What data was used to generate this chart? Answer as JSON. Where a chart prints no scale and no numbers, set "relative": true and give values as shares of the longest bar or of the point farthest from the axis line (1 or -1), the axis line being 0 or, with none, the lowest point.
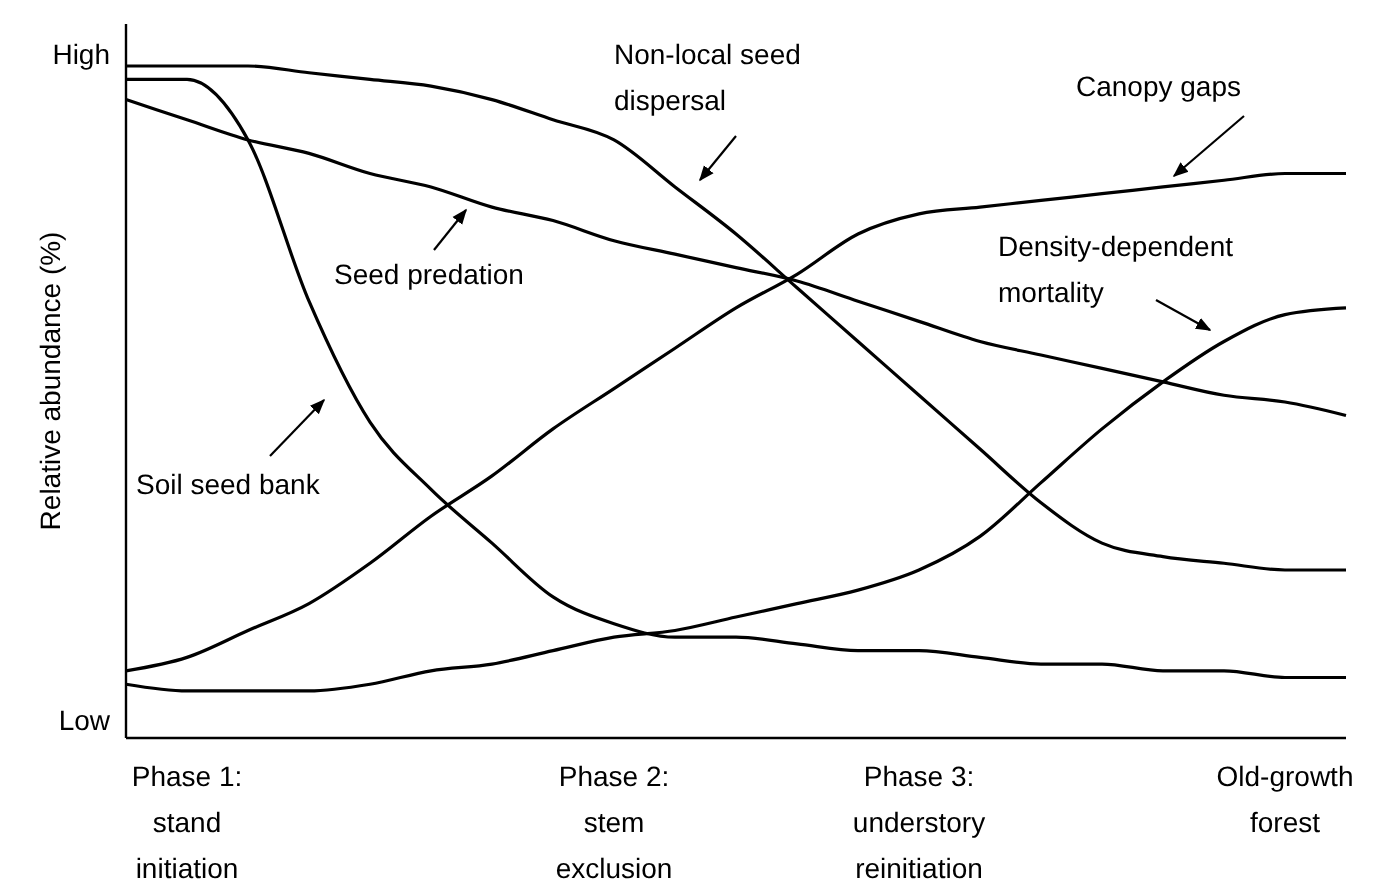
{
  "chart_data": {
    "type": "line",
    "relative": true,
    "ylabel": "Relative abundance (%)",
    "line_style": "solid",
    "categories": [
      null,
      "Phase 1:\nstand\ninitiation",
      null,
      null,
      null,
      null,
      null,
      null,
      "Phase 2:\nstem\nexclusion",
      null,
      null,
      null,
      null,
      "Phase 3:\nunderstory\nreinitiation",
      null,
      null,
      null,
      null,
      null,
      "Old-growth\nforest",
      null
    ],
    "series": [
      {
        "color": "#000000",
        "values": [
          1,
          1,
          1,
          0.99,
          0.98,
          0.97,
          0.95,
          0.92,
          0.89,
          0.82,
          0.75,
          0.67,
          0.59,
          0.51,
          0.43,
          0.35,
          0.29,
          0.27,
          0.26,
          0.25,
          0.25
        ]
      },
      {
        "color": "#000000",
        "values": [
          0.95,
          0.92,
          0.89,
          0.87,
          0.84,
          0.82,
          0.79,
          0.77,
          0.74,
          0.72,
          0.7,
          0.68,
          0.65,
          0.62,
          0.59,
          0.57,
          0.55,
          0.53,
          0.51,
          0.5,
          0.48
        ]
      },
      {
        "color": "#000000",
        "values": [
          0.98,
          0.98,
          0.89,
          0.65,
          0.47,
          0.37,
          0.29,
          0.21,
          0.17,
          0.15,
          0.15,
          0.14,
          0.13,
          0.13,
          0.12,
          0.11,
          0.11,
          0.1,
          0.1,
          0.09,
          0.09
        ]
      },
      {
        "color": "#000000",
        "values": [
          0.1,
          0.12,
          0.16,
          0.2,
          0.26,
          0.33,
          0.39,
          0.46,
          0.52,
          0.58,
          0.64,
          0.69,
          0.75,
          0.78,
          0.79,
          0.8,
          0.81,
          0.82,
          0.83,
          0.84,
          0.84
        ]
      },
      {
        "color": "#000000",
        "values": [
          0.08,
          0.07,
          0.07,
          0.07,
          0.08,
          0.1,
          0.11,
          0.13,
          0.15,
          0.16,
          0.18,
          0.2,
          0.22,
          0.25,
          0.3,
          0.38,
          0.46,
          0.53,
          0.59,
          0.63,
          0.64
        ]
      }
    ],
    "annotations": [
      "High",
      "Low",
      "Non-local seed\ndispersal",
      "Seed predation",
      "Soil seed bank",
      "Canopy gaps",
      "Density-dependent\nmortality"
    ]
  }
}
